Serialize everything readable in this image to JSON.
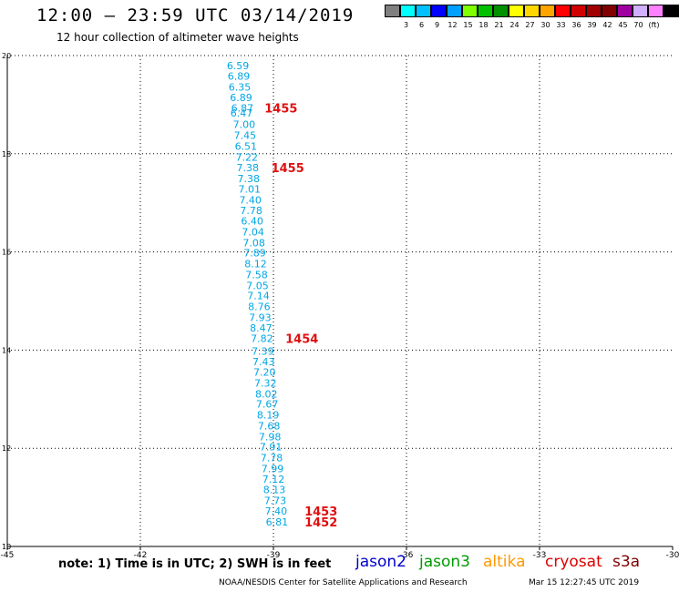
{
  "header": {
    "title": "12:00 – 23:59 UTC 03/14/2019",
    "subtitle": "12 hour collection of altimeter wave heights"
  },
  "colorbar": {
    "colors": [
      "#7f7f7f",
      "#00ffff",
      "#00bfff",
      "#0000ff",
      "#00a0ff",
      "#7fff00",
      "#00c000",
      "#009000",
      "#ffff00",
      "#ffd700",
      "#ffa500",
      "#ff0000",
      "#d00000",
      "#a00000",
      "#800000",
      "#a000a0",
      "#d0b0ff",
      "#ff80ff",
      "#000000"
    ],
    "labels": [
      "3",
      "6",
      "9",
      "12",
      "15",
      "18",
      "21",
      "24",
      "27",
      "30",
      "33",
      "36",
      "39",
      "42",
      "45",
      "70",
      "(ft)"
    ]
  },
  "map": {
    "lon_range": [
      -45,
      -30
    ],
    "lat_range": [
      10,
      20
    ],
    "lon_ticks": [
      "-45",
      "-42",
      "-39",
      "-36",
      "-33",
      "-30"
    ],
    "lat_ticks": [
      "10",
      "12",
      "14",
      "16",
      "18",
      "20"
    ],
    "swh_points": [
      {
        "lat": 19.8,
        "lon": -39.8,
        "v": "6.59"
      },
      {
        "lat": 19.58,
        "lon": -39.78,
        "v": "6.89"
      },
      {
        "lat": 19.36,
        "lon": -39.76,
        "v": "6.35"
      },
      {
        "lat": 19.15,
        "lon": -39.73,
        "v": "6.89"
      },
      {
        "lat": 18.93,
        "lon": -39.7,
        "v": "6.87"
      },
      {
        "lat": 18.83,
        "lon": -39.72,
        "v": "6.47"
      },
      {
        "lat": 18.6,
        "lon": -39.66,
        "v": "7.00"
      },
      {
        "lat": 18.38,
        "lon": -39.64,
        "v": "7.45"
      },
      {
        "lat": 18.15,
        "lon": -39.62,
        "v": "6.51"
      },
      {
        "lat": 17.93,
        "lon": -39.6,
        "v": "7.22"
      },
      {
        "lat": 17.72,
        "lon": -39.58,
        "v": "7.38"
      },
      {
        "lat": 17.5,
        "lon": -39.56,
        "v": "7.38"
      },
      {
        "lat": 17.28,
        "lon": -39.54,
        "v": "7.01"
      },
      {
        "lat": 17.06,
        "lon": -39.52,
        "v": "7.40"
      },
      {
        "lat": 16.85,
        "lon": -39.5,
        "v": "7.78"
      },
      {
        "lat": 16.63,
        "lon": -39.48,
        "v": "6.40"
      },
      {
        "lat": 16.41,
        "lon": -39.46,
        "v": "7.04"
      },
      {
        "lat": 16.19,
        "lon": -39.44,
        "v": "7.08"
      },
      {
        "lat": 15.98,
        "lon": -39.42,
        "v": "7.89"
      },
      {
        "lat": 15.76,
        "lon": -39.4,
        "v": "8.12"
      },
      {
        "lat": 15.54,
        "lon": -39.38,
        "v": "7.58"
      },
      {
        "lat": 15.32,
        "lon": -39.36,
        "v": "7.05"
      },
      {
        "lat": 15.11,
        "lon": -39.34,
        "v": "7.14"
      },
      {
        "lat": 14.89,
        "lon": -39.32,
        "v": "8.76"
      },
      {
        "lat": 14.67,
        "lon": -39.3,
        "v": "7.93"
      },
      {
        "lat": 14.45,
        "lon": -39.28,
        "v": "8.47"
      },
      {
        "lat": 14.24,
        "lon": -39.26,
        "v": "7.82"
      },
      {
        "lat": 13.98,
        "lon": -39.24,
        "v": "7.39"
      },
      {
        "lat": 13.77,
        "lon": -39.22,
        "v": "7.43"
      },
      {
        "lat": 13.55,
        "lon": -39.2,
        "v": "7.20"
      },
      {
        "lat": 13.33,
        "lon": -39.18,
        "v": "7.32"
      },
      {
        "lat": 13.11,
        "lon": -39.16,
        "v": "8.02"
      },
      {
        "lat": 12.9,
        "lon": -39.14,
        "v": "7.67"
      },
      {
        "lat": 12.68,
        "lon": -39.12,
        "v": "8.19"
      },
      {
        "lat": 12.46,
        "lon": -39.1,
        "v": "7.68"
      },
      {
        "lat": 12.24,
        "lon": -39.08,
        "v": "7.98"
      },
      {
        "lat": 12.03,
        "lon": -39.06,
        "v": "7.91"
      },
      {
        "lat": 11.81,
        "lon": -39.04,
        "v": "7.78"
      },
      {
        "lat": 11.59,
        "lon": -39.02,
        "v": "7.99"
      },
      {
        "lat": 11.37,
        "lon": -39.0,
        "v": "7.12"
      },
      {
        "lat": 11.16,
        "lon": -38.98,
        "v": "8.13"
      },
      {
        "lat": 10.94,
        "lon": -38.96,
        "v": "7.73"
      },
      {
        "lat": 10.72,
        "lon": -38.94,
        "v": "7.40"
      },
      {
        "lat": 10.5,
        "lon": -38.92,
        "v": "6.81"
      }
    ],
    "time_labels": [
      {
        "lat": 18.93,
        "lon": -39.2,
        "v": "1455"
      },
      {
        "lat": 17.72,
        "lon": -39.05,
        "v": "1455"
      },
      {
        "lat": 14.24,
        "lon": -38.73,
        "v": "1454"
      },
      {
        "lat": 10.72,
        "lon": -38.3,
        "v": "1453"
      },
      {
        "lat": 10.5,
        "lon": -38.3,
        "v": "1452"
      }
    ],
    "swh_color": "#00a6e6",
    "time_color": "#e01010"
  },
  "footer": {
    "note": "note: 1) Time is in UTC; 2) SWH is in feet",
    "legend": [
      {
        "label": "jason2",
        "color": "#0000cc"
      },
      {
        "label": "jason3",
        "color": "#009a00"
      },
      {
        "label": "altika",
        "color": "#ff9900"
      },
      {
        "label": "cryosat",
        "color": "#dd0000"
      },
      {
        "label": "s3a",
        "color": "#800000"
      }
    ],
    "credit": "NOAA/NESDIS Center for Satellite Applications and Research",
    "stamp": "Mar 15 12:27:45 UTC 2019"
  }
}
